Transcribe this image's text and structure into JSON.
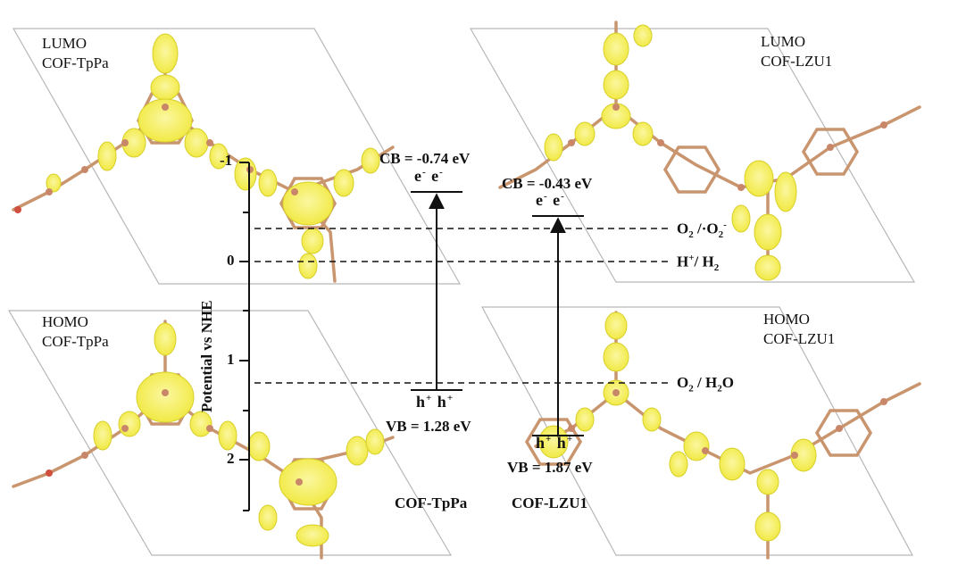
{
  "panels": {
    "lumo_tppa": {
      "line1": "LUMO",
      "line2": "COF-TpPa"
    },
    "lumo_lzu1": {
      "line1": "LUMO",
      "line2": "COF-LZU1"
    },
    "homo_tppa": {
      "line1": "HOMO",
      "line2": "COF-TpPa"
    },
    "homo_lzu1": {
      "line1": "HOMO",
      "line2": "COF-LZU1"
    }
  },
  "axis": {
    "title": "Potential vs NHE",
    "ticks": [
      "-1",
      "0",
      "1",
      "2"
    ]
  },
  "levels": {
    "tppa_cb": "CB = -0.74 eV",
    "tppa_vb": "VB = 1.28 eV",
    "lzu1_cb": "CB = -0.43 eV",
    "lzu1_vb": "VB = 1.87 eV"
  },
  "carriers": {
    "electron": "e",
    "electron_charge": "-",
    "hole": "h",
    "hole_charge": "+"
  },
  "redox": {
    "o2_superoxide": {
      "a": "O",
      "a_sub": "2",
      "b": " /·O",
      "b_sub": "2",
      "b_sup": "-"
    },
    "h2": {
      "a": "H",
      "a_sup": "+",
      "b": "/ H",
      "b_sub": "2"
    },
    "o2_h2o": {
      "a": "O",
      "a_sub": "2",
      "b": " / H",
      "b_sub": "2",
      "c": "O"
    }
  },
  "categories": {
    "tppa": "COF-TpPa",
    "lzu1": "COF-LZU1"
  },
  "chart_data": {
    "type": "band-diagram",
    "ylabel": "Potential vs NHE",
    "ylim": [
      -1,
      2.5
    ],
    "yticks": [
      -1,
      0,
      1,
      2
    ],
    "materials": [
      {
        "name": "COF-TpPa",
        "CB": -0.74,
        "VB": 1.28
      },
      {
        "name": "COF-LZU1",
        "CB": -0.43,
        "VB": 1.87
      }
    ],
    "reference_potentials": [
      -0.33,
      0,
      1.23
    ],
    "colors": {
      "orbital_lobe": "#f5ef4a",
      "orbital_edge": "#d6cf2a",
      "atom": "#c9876a",
      "bond": "#c9956e",
      "text": "#111111"
    }
  }
}
